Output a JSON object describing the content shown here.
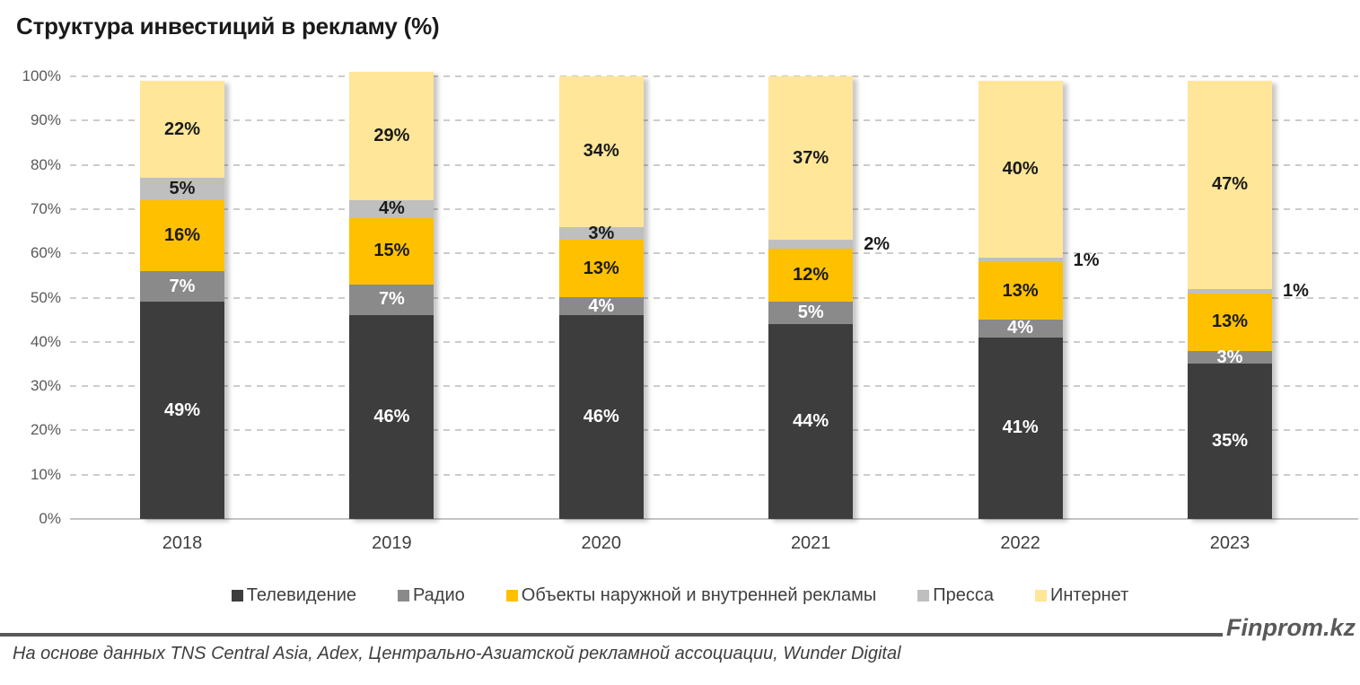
{
  "title": "Структура инвестиций в рекламу (%)",
  "chart_data": {
    "type": "bar",
    "stacked": true,
    "orientation": "vertical",
    "title": "Структура инвестиций в рекламу (%)",
    "categories": [
      "2018",
      "2019",
      "2020",
      "2021",
      "2022",
      "2023"
    ],
    "series": [
      {
        "name": "Телевидение",
        "color": "#3d3d3d",
        "label_color": "#ffffff",
        "values": [
          49,
          46,
          46,
          44,
          41,
          35
        ]
      },
      {
        "name": "Радио",
        "color": "#8a8a8a",
        "label_color": "#ffffff",
        "values": [
          7,
          7,
          4,
          5,
          4,
          3
        ]
      },
      {
        "name": "Объекты наружной и внутренней рекламы",
        "color": "#ffc000",
        "label_color": "#1a1a1a",
        "values": [
          16,
          15,
          13,
          12,
          13,
          13
        ]
      },
      {
        "name": "Пресса",
        "color": "#bfbfbf",
        "label_color": "#1a1a1a",
        "values": [
          5,
          4,
          3,
          2,
          1,
          1
        ]
      },
      {
        "name": "Интернет",
        "color": "#ffe699",
        "label_color": "#1a1a1a",
        "values": [
          22,
          29,
          34,
          37,
          40,
          47
        ]
      }
    ],
    "data_label_format": "{value}%",
    "xlabel": "",
    "ylabel": "",
    "ylim": [
      0,
      100
    ],
    "y_ticks": [
      "0%",
      "10%",
      "20%",
      "30%",
      "40%",
      "50%",
      "60%",
      "70%",
      "80%",
      "90%",
      "100%"
    ],
    "grid": "dashed horizontal",
    "legend_position": "bottom"
  },
  "footer": {
    "brand": "Finprom.kz",
    "source": "На основе данных TNS Central Asia, Adex, Центрально-Азиатской рекламной ассоциации, Wunder Digital"
  }
}
